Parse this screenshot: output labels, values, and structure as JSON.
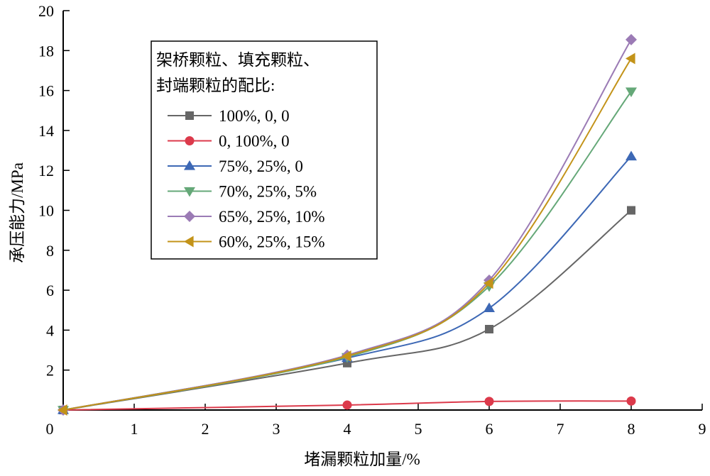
{
  "chart_data": {
    "type": "line",
    "title": "",
    "xlabel": "堵漏颗粒加量/%",
    "ylabel": "承压能力/MPa",
    "xlim": [
      0,
      9
    ],
    "ylim": [
      0,
      20
    ],
    "xticks": [
      "0",
      "1",
      "2",
      "3",
      "4",
      "5",
      "6",
      "7",
      "8",
      "9"
    ],
    "yticks": [
      "2",
      "4",
      "6",
      "8",
      "10",
      "12",
      "14",
      "16",
      "18",
      "20"
    ],
    "grid": false,
    "legend_position": "top-left",
    "legend_title": [
      "架桥颗粒、填充颗粒、",
      "封端颗粒的配比:"
    ],
    "x": [
      0,
      4,
      6,
      8
    ],
    "series": [
      {
        "name": "100%, 0, 0",
        "values": [
          0,
          2.35,
          4.05,
          10.0
        ],
        "color": "#666666",
        "marker": "square"
      },
      {
        "name": "0, 100%, 0",
        "values": [
          0,
          0.25,
          0.43,
          0.45
        ],
        "color": "#dc3a4b",
        "marker": "circle"
      },
      {
        "name": "75%, 25%, 0",
        "values": [
          0,
          2.6,
          5.1,
          12.7
        ],
        "color": "#3d68b5",
        "marker": "triangle-up"
      },
      {
        "name": "70%, 25%, 5%",
        "values": [
          0,
          2.65,
          6.2,
          15.95
        ],
        "color": "#65a878",
        "marker": "triangle-down"
      },
      {
        "name": "65%, 25%, 10%",
        "values": [
          0,
          2.75,
          6.5,
          18.55
        ],
        "color": "#9b7bb5",
        "marker": "diamond"
      },
      {
        "name": "60%, 25%, 15%",
        "values": [
          0,
          2.7,
          6.35,
          17.6
        ],
        "color": "#c39319",
        "marker": "triangle-left"
      }
    ]
  }
}
